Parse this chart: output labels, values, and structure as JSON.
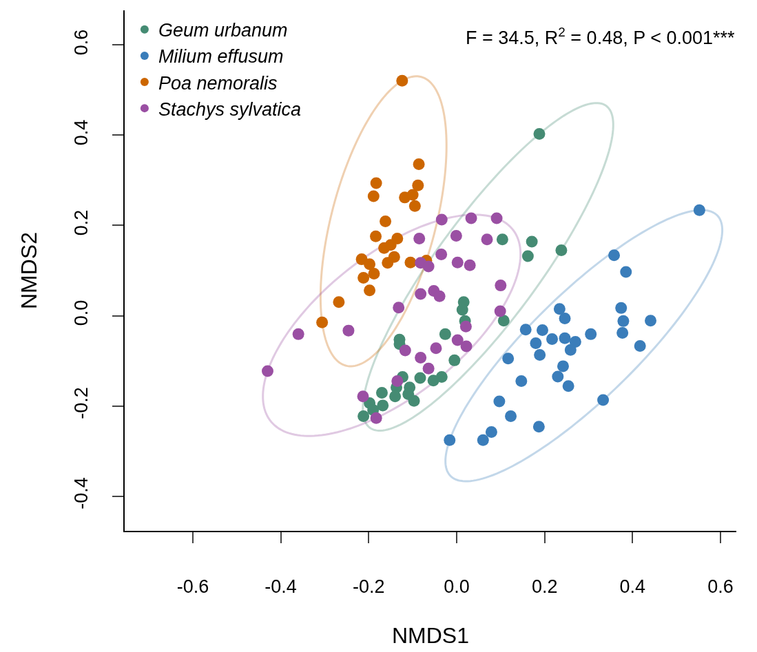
{
  "chart_data": {
    "type": "scatter",
    "xlabel": "NMDS1",
    "ylabel": "NMDS2",
    "annotations": [
      "F = 34.5, R$^{2}$ = 0.48, P < 0.001***"
    ],
    "xlim": [
      -0.755,
      0.636
    ],
    "ylim": [
      -0.477,
      0.677
    ],
    "xticks": [
      {
        "value": -0.6,
        "label": "-0.6"
      },
      {
        "value": -0.4,
        "label": "-0.4"
      },
      {
        "value": -0.2,
        "label": "-0.2"
      },
      {
        "value": 0,
        "label": "0.0"
      },
      {
        "value": 0.2,
        "label": "0.2"
      },
      {
        "value": 0.4,
        "label": "0.4"
      },
      {
        "value": 0.6,
        "label": "0.6"
      }
    ],
    "yticks": [
      {
        "value": -0.4,
        "label": "-0.4"
      },
      {
        "value": -0.2,
        "label": "-0.2"
      },
      {
        "value": 0,
        "label": "0.0"
      },
      {
        "value": 0.2,
        "label": "0.2"
      },
      {
        "value": 0.4,
        "label": "0.4"
      },
      {
        "value": 0.6,
        "label": "0.6"
      }
    ],
    "grid": false,
    "legend": "top left",
    "marker": "circle",
    "series": [
      {
        "name": "Geum urbanum",
        "color": "#458b73",
        "x": [
          0.188,
          0.238,
          0.171,
          0.162,
          0.104,
          0.107,
          0.016,
          0.013,
          0.019,
          -0.026,
          -0.005,
          -0.13,
          -0.13,
          -0.034,
          -0.053,
          -0.083,
          -0.123,
          -0.137,
          -0.107,
          -0.11,
          -0.14,
          -0.097,
          -0.17,
          -0.168,
          -0.198,
          -0.212,
          -0.19
        ],
        "values": [
          0.403,
          0.145,
          0.164,
          0.132,
          0.169,
          -0.011,
          0.03,
          0.013,
          -0.012,
          -0.041,
          -0.099,
          -0.053,
          -0.063,
          -0.136,
          -0.144,
          -0.138,
          -0.136,
          -0.159,
          -0.159,
          -0.174,
          -0.179,
          -0.189,
          -0.171,
          -0.199,
          -0.194,
          -0.223,
          -0.209
        ]
      },
      {
        "name": "Milium effusum",
        "color": "#3a7dba",
        "x": [
          0.552,
          0.358,
          0.385,
          0.234,
          0.246,
          0.374,
          0.379,
          0.441,
          0.377,
          0.157,
          0.195,
          0.217,
          0.246,
          0.27,
          0.305,
          0.18,
          0.259,
          0.189,
          0.417,
          0.117,
          0.242,
          0.23,
          0.254,
          0.147,
          0.333,
          0.097,
          0.123,
          0.187,
          0.079,
          0.06,
          -0.016
        ],
        "values": [
          0.234,
          0.134,
          0.097,
          0.015,
          -0.006,
          0.017,
          -0.012,
          -0.011,
          -0.038,
          -0.031,
          -0.032,
          -0.052,
          -0.05,
          -0.058,
          -0.041,
          -0.061,
          -0.076,
          -0.087,
          -0.067,
          -0.095,
          -0.112,
          -0.135,
          -0.156,
          -0.145,
          -0.187,
          -0.19,
          -0.223,
          -0.246,
          -0.258,
          -0.276,
          -0.276
        ]
      },
      {
        "name": "Poa nemoralis",
        "color": "#cc6600",
        "x": [
          -0.124,
          -0.086,
          -0.183,
          -0.088,
          -0.189,
          -0.118,
          -0.1,
          -0.095,
          -0.162,
          -0.184,
          -0.135,
          -0.165,
          -0.15,
          -0.216,
          -0.198,
          -0.142,
          -0.157,
          -0.105,
          -0.069,
          -0.188,
          -0.212,
          -0.198,
          -0.268,
          -0.306
        ],
        "values": [
          0.521,
          0.336,
          0.294,
          0.289,
          0.265,
          0.262,
          0.268,
          0.243,
          0.209,
          0.176,
          0.171,
          0.15,
          0.157,
          0.125,
          0.114,
          0.13,
          0.117,
          0.118,
          0.122,
          0.093,
          0.084,
          0.056,
          0.03,
          -0.015
        ]
      },
      {
        "name": "Stachys sylvatica",
        "color": "#9a4fa3",
        "x": [
          -0.43,
          -0.36,
          -0.246,
          -0.034,
          0.033,
          0.091,
          -0.085,
          -0.001,
          0.069,
          -0.035,
          -0.082,
          -0.064,
          0.002,
          0.03,
          0.1,
          -0.082,
          -0.052,
          -0.039,
          -0.132,
          0.099,
          0.021,
          0.002,
          0.022,
          -0.047,
          -0.117,
          -0.082,
          -0.064,
          -0.135,
          -0.213,
          -0.183
        ],
        "values": [
          -0.123,
          -0.041,
          -0.033,
          0.213,
          0.216,
          0.216,
          0.171,
          0.177,
          0.169,
          0.136,
          0.117,
          0.109,
          0.118,
          0.112,
          0.067,
          0.048,
          0.055,
          0.043,
          0.018,
          0.01,
          -0.024,
          -0.054,
          -0.068,
          -0.072,
          -0.077,
          -0.093,
          -0.117,
          -0.145,
          -0.179,
          -0.227
        ]
      }
    ]
  }
}
